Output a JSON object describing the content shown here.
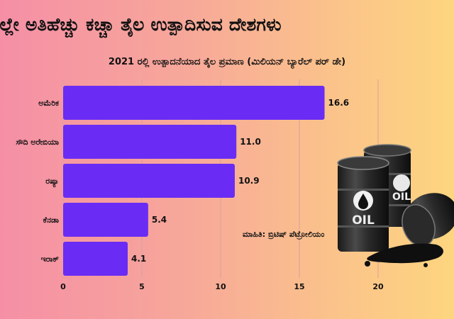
{
  "title": "ರಲ್ಲೇ ಅತಿಹೆಚ್ಚು ಕಚ್ಚಾ ತೈಲ ಉತ್ಪಾದಿಸುವ ದೇಶಗಳು",
  "subtitle": "2021 ರಲ್ಲಿ ಉತ್ಪಾದನೆಯಾದ ತೈಲ ಪ್ರಮಾಣ (ಮಿಲಿಯನ್ ಬ್ಯಾರೆಲ್ ಪರ್ ಡೇ)",
  "source": "ಮಾಹಿತಿ: ಬ್ರಿಟಿಷ್ ಪೆಟ್ರೋಲಿಯಂ",
  "barrel_label": "OIL",
  "colors": {
    "bar": "#6a2cf4",
    "grid": "#d9a0a0",
    "text": "#111111"
  },
  "chart_data": {
    "type": "bar",
    "orientation": "horizontal",
    "categories": [
      "ಅಮೆರಿಕ",
      "ಸೌದಿ ಅರೇಬಿಯಾ",
      "ರಷ್ಯಾ",
      "ಕೆನಡಾ",
      "ಇರಾಕ್"
    ],
    "values": [
      16.6,
      11.0,
      10.9,
      5.4,
      4.1
    ],
    "value_labels": [
      "16.6",
      "11.0",
      "10.9",
      "5.4",
      "4.1"
    ],
    "xticks": [
      0,
      5,
      10,
      15,
      20
    ],
    "xlim": [
      0,
      20
    ],
    "grid": true
  }
}
